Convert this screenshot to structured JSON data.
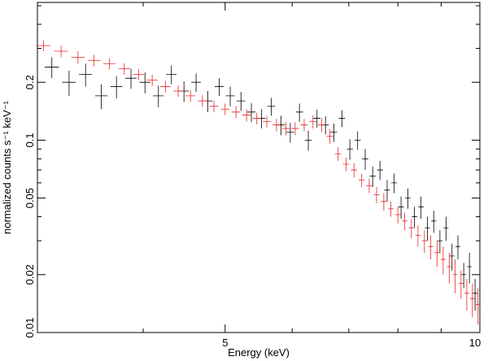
{
  "chart_data": {
    "type": "errorbar",
    "xlabel": "Energy (keV)",
    "ylabel": "normalized counts s⁻¹ keV⁻¹",
    "xscale": "log",
    "yscale": "log",
    "xlim": [
      3,
      10
    ],
    "ylim": [
      0.01,
      0.52
    ],
    "xticks": [
      5,
      10
    ],
    "xminor_ticks": [
      4,
      6,
      7,
      8,
      9
    ],
    "yticks": [
      0.01,
      0.02,
      0.05,
      0.1,
      0.2
    ],
    "yminor_ticks": [
      0.03,
      0.04,
      0.06,
      0.07,
      0.08,
      0.09,
      0.3,
      0.4,
      0.5
    ],
    "series": [
      {
        "color": "#000000",
        "x_halfwidth": 0.06,
        "x": [
          3.12,
          3.27,
          3.42,
          3.57,
          3.72,
          3.87,
          4.02,
          4.17,
          4.32,
          4.47,
          4.62,
          4.77,
          4.92,
          5.07,
          5.22,
          5.37,
          5.52,
          5.67,
          5.82,
          5.97,
          6.12,
          6.27,
          6.42,
          6.57,
          6.72,
          6.87,
          7.02,
          7.17,
          7.32,
          7.47,
          7.62,
          7.77,
          7.92,
          8.07,
          8.22,
          8.37,
          8.52,
          8.67,
          8.82,
          8.97,
          9.12,
          9.27,
          9.42,
          9.57,
          9.72,
          9.87
        ],
        "values": [
          0.24,
          0.2,
          0.22,
          0.17,
          0.19,
          0.21,
          0.2,
          0.17,
          0.22,
          0.18,
          0.2,
          0.16,
          0.19,
          0.17,
          0.16,
          0.14,
          0.13,
          0.15,
          0.12,
          0.11,
          0.14,
          0.1,
          0.13,
          0.12,
          0.11,
          0.13,
          0.09,
          0.1,
          0.08,
          0.065,
          0.07,
          0.055,
          0.06,
          0.045,
          0.05,
          0.04,
          0.045,
          0.035,
          0.038,
          0.03,
          0.035,
          0.025,
          0.028,
          0.02,
          0.022,
          0.016
        ],
        "errors": [
          0.03,
          0.03,
          0.03,
          0.025,
          0.025,
          0.025,
          0.025,
          0.022,
          0.025,
          0.022,
          0.022,
          0.02,
          0.02,
          0.02,
          0.018,
          0.016,
          0.015,
          0.016,
          0.014,
          0.013,
          0.015,
          0.012,
          0.014,
          0.013,
          0.012,
          0.013,
          0.011,
          0.011,
          0.01,
          0.008,
          0.008,
          0.007,
          0.007,
          0.006,
          0.006,
          0.005,
          0.006,
          0.005,
          0.005,
          0.004,
          0.005,
          0.004,
          0.004,
          0.003,
          0.004,
          0.003
        ]
      },
      {
        "color": "#e8231f",
        "x_halfwidth": 0.06,
        "x": [
          3.05,
          3.2,
          3.35,
          3.5,
          3.65,
          3.8,
          3.95,
          4.1,
          4.25,
          4.4,
          4.55,
          4.7,
          4.85,
          5.0,
          5.15,
          5.3,
          5.45,
          5.6,
          5.75,
          5.9,
          6.05,
          6.2,
          6.35,
          6.5,
          6.65,
          6.8,
          6.95,
          7.1,
          7.25,
          7.4,
          7.55,
          7.7,
          7.85,
          8.0,
          8.15,
          8.3,
          8.45,
          8.6,
          8.75,
          8.9,
          9.05,
          9.2,
          9.35,
          9.5,
          9.65,
          9.8,
          9.95
        ],
        "values": [
          0.31,
          0.29,
          0.27,
          0.26,
          0.25,
          0.235,
          0.22,
          0.205,
          0.19,
          0.18,
          0.17,
          0.16,
          0.15,
          0.145,
          0.14,
          0.135,
          0.13,
          0.125,
          0.12,
          0.115,
          0.115,
          0.12,
          0.125,
          0.12,
          0.105,
          0.085,
          0.075,
          0.07,
          0.062,
          0.058,
          0.052,
          0.048,
          0.044,
          0.041,
          0.038,
          0.035,
          0.032,
          0.03,
          0.028,
          0.026,
          0.024,
          0.022,
          0.02,
          0.018,
          0.016,
          0.015,
          0.014
        ],
        "errors": [
          0.02,
          0.02,
          0.02,
          0.018,
          0.017,
          0.016,
          0.015,
          0.014,
          0.013,
          0.012,
          0.012,
          0.011,
          0.01,
          0.01,
          0.01,
          0.01,
          0.009,
          0.009,
          0.009,
          0.009,
          0.009,
          0.009,
          0.01,
          0.01,
          0.009,
          0.007,
          0.006,
          0.006,
          0.005,
          0.005,
          0.005,
          0.005,
          0.004,
          0.004,
          0.004,
          0.004,
          0.004,
          0.004,
          0.004,
          0.004,
          0.004,
          0.004,
          0.004,
          0.003,
          0.003,
          0.003,
          0.003
        ]
      }
    ]
  }
}
